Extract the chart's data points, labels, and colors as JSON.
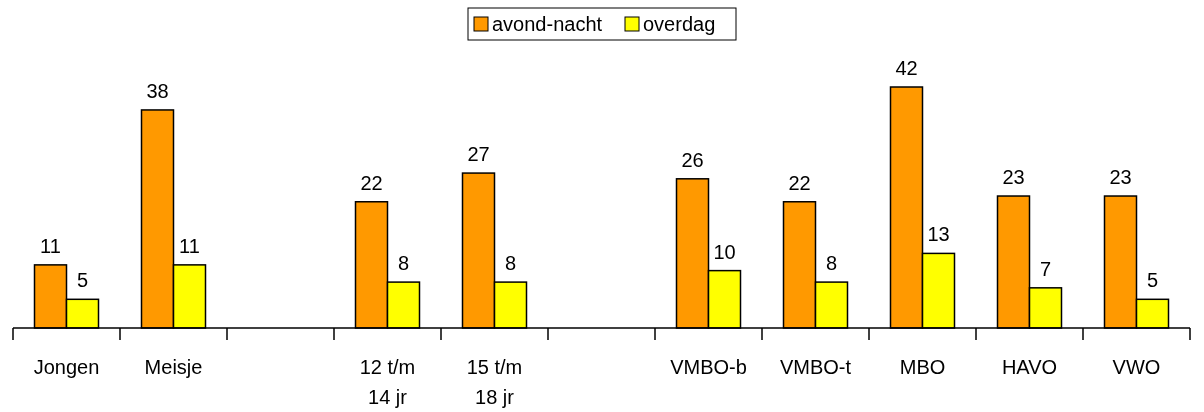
{
  "chart_data": {
    "type": "bar",
    "categories": [
      "Jongen",
      "Meisje",
      null,
      "12 t/m\n14 jr",
      "15 t/m\n18 jr",
      null,
      "VMBO-b",
      "VMBO-t",
      "MBO",
      "HAVO",
      "VWO"
    ],
    "series": [
      {
        "name": "avond-nacht",
        "color": "#ff9900",
        "values": [
          11,
          38,
          null,
          22,
          27,
          null,
          26,
          22,
          42,
          23,
          23
        ]
      },
      {
        "name": "overdag",
        "color": "#ffff00",
        "values": [
          5,
          11,
          null,
          8,
          8,
          null,
          10,
          8,
          13,
          7,
          5
        ]
      }
    ],
    "data_labels": true,
    "legend": "top"
  }
}
